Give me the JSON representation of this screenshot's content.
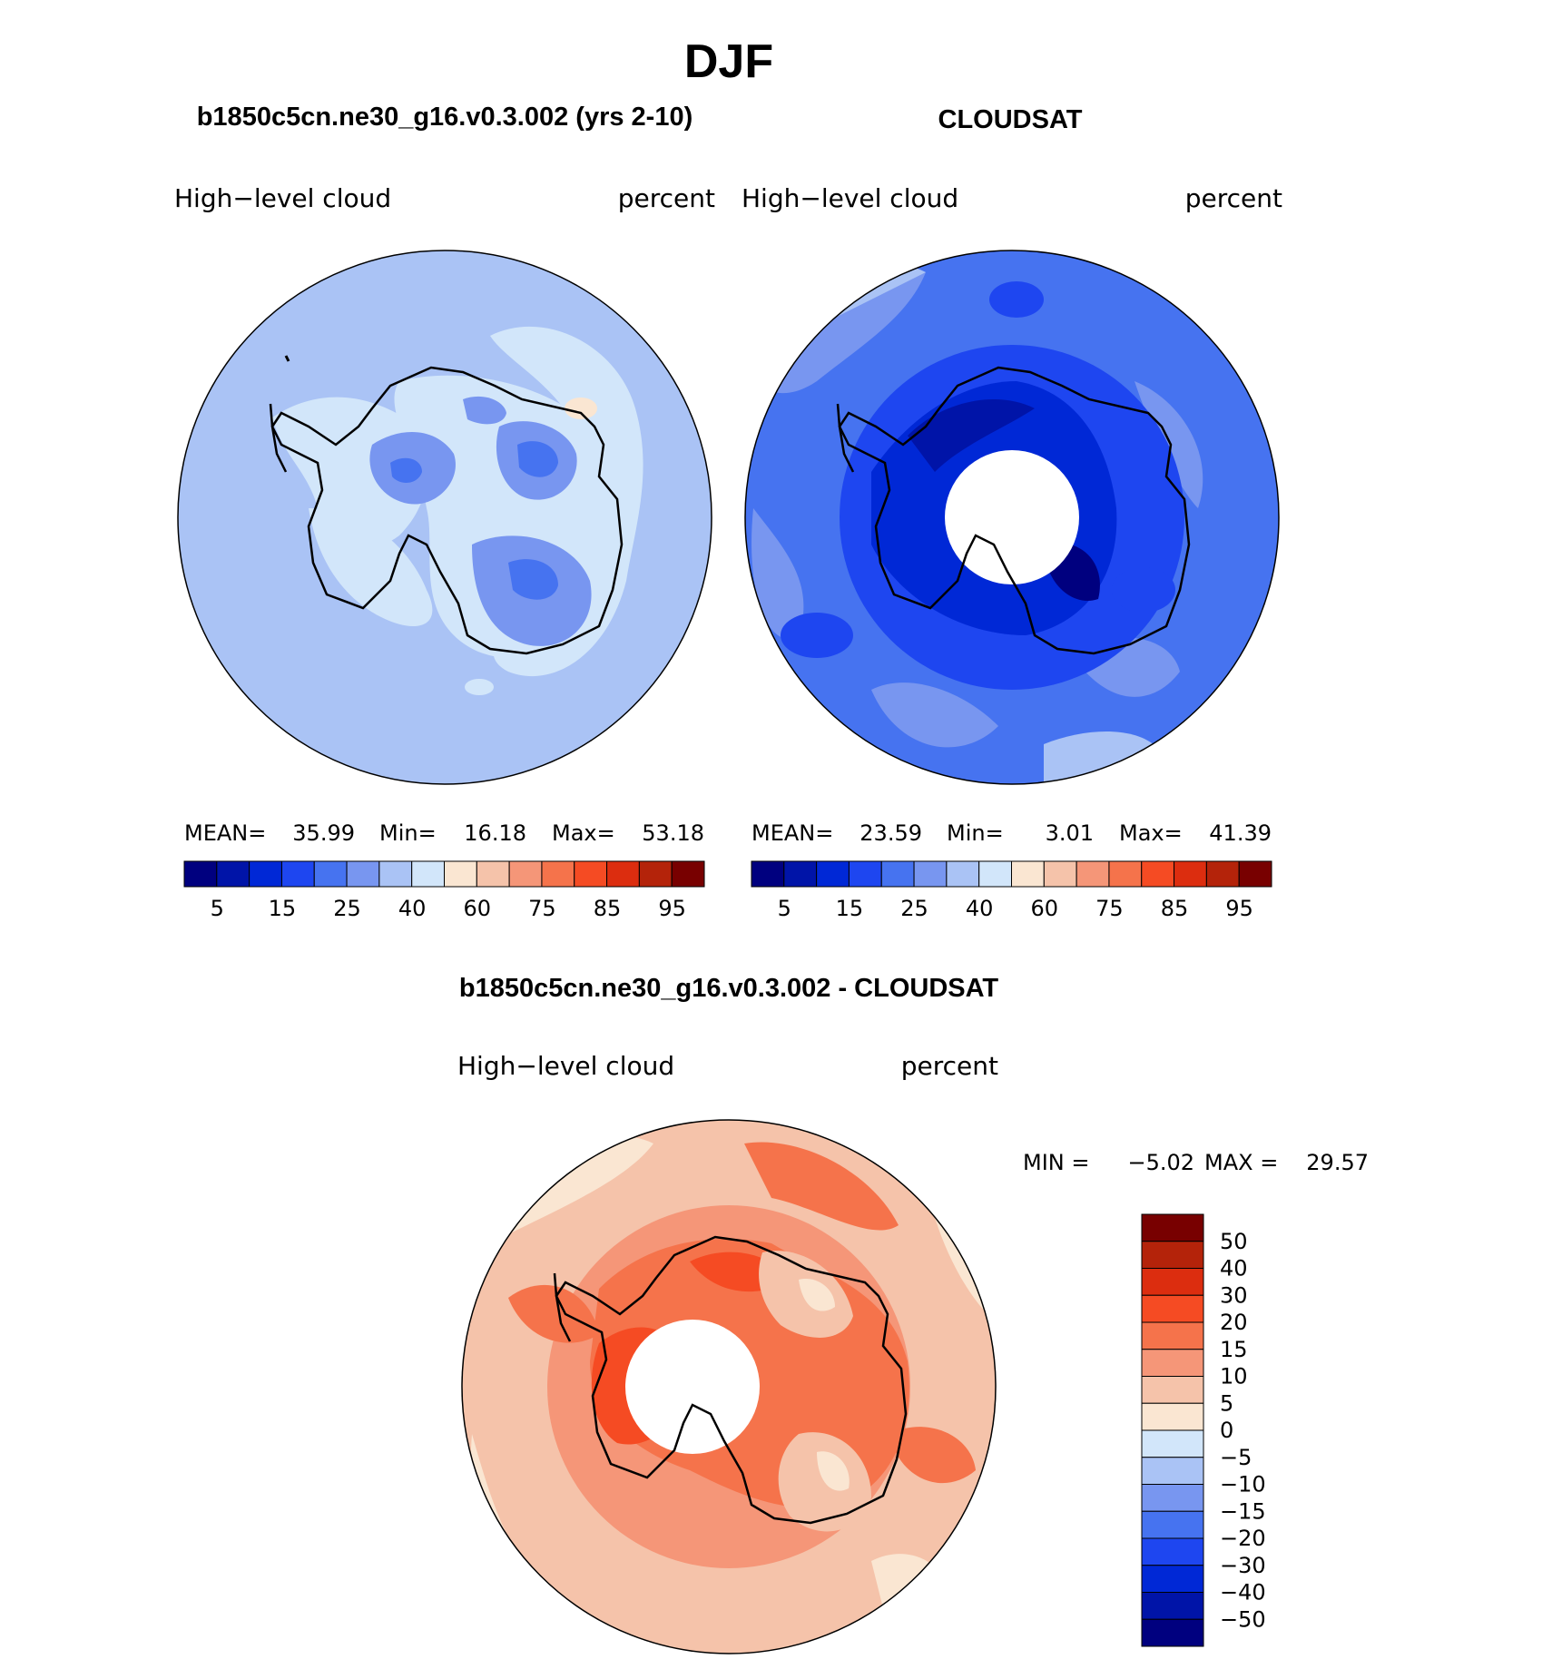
{
  "page_title": "DJF",
  "panels": [
    {
      "id": "model",
      "heading": "b1850c5cn.ne30_g16.v0.3.002 (yrs 2-10)",
      "variable_label": "High−level  cloud",
      "units_label": "percent",
      "stats": {
        "mean_label": "MEAN=",
        "mean_value": "35.99",
        "min_label": "Min=",
        "min_value": "16.18",
        "max_label": "Max=",
        "max_value": "53.18"
      },
      "colorbar_labels": [
        "5",
        "15",
        "25",
        "40",
        "60",
        "75",
        "85",
        "95"
      ]
    },
    {
      "id": "obs",
      "heading": "CLOUDSAT",
      "variable_label": "High−level  cloud",
      "units_label": "percent",
      "stats": {
        "mean_label": "MEAN=",
        "mean_value": "23.59",
        "min_label": "Min=",
        "min_value": "3.01",
        "max_label": "Max=",
        "max_value": "41.39"
      },
      "colorbar_labels": [
        "5",
        "15",
        "25",
        "40",
        "60",
        "75",
        "85",
        "95"
      ]
    },
    {
      "id": "diff",
      "heading": "b1850c5cn.ne30_g16.v0.3.002 - CLOUDSAT",
      "variable_label": "High−level  cloud",
      "units_label": "percent",
      "stats": {
        "min_label": "MIN =",
        "min_value": "−5.02",
        "max_label": "MAX =",
        "max_value": "29.57"
      },
      "colorbar_labels": [
        "50",
        "40",
        "30",
        "20",
        "15",
        "10",
        "5",
        "0",
        "−5",
        "−10",
        "−15",
        "−20",
        "−30",
        "−40",
        "−50"
      ]
    }
  ],
  "colors": {
    "abs_scale": [
      "#00007f",
      "#0014a8",
      "#0028d6",
      "#1e46f0",
      "#4673f0",
      "#7896f0",
      "#aac3f5",
      "#d2e6fa",
      "#fae6d2",
      "#f5c3aa",
      "#f59678",
      "#f5734b",
      "#f54b23",
      "#dc2d0f",
      "#b4230a",
      "#780000"
    ],
    "diff_scale_top_to_bottom": [
      "#780000",
      "#b4230a",
      "#dc2d0f",
      "#f54b23",
      "#f5734b",
      "#f59678",
      "#f5c3aa",
      "#fae6d2",
      "#d2e6fa",
      "#aac3f5",
      "#7896f0",
      "#4673f0",
      "#1e46f0",
      "#0028d6",
      "#0014a8",
      "#00007f"
    ],
    "model_background": "#aac3f5",
    "obs_background": "#4673f0",
    "diff_background": "#f5c3aa"
  }
}
